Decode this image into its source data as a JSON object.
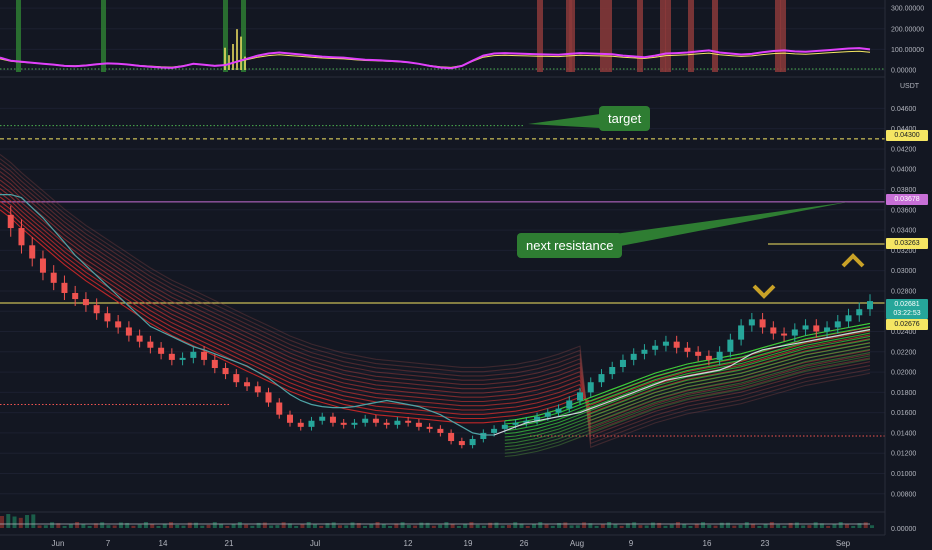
{
  "chart_data": {
    "type": "line",
    "currency": "USDT",
    "price_axis": {
      "ticks": [
        "0.04600",
        "0.04400",
        "0.04200",
        "0.04000",
        "0.03800",
        "0.03600",
        "0.03400",
        "0.03200",
        "0.03000",
        "0.02800",
        "0.02600",
        "0.02400",
        "0.02200",
        "0.02000",
        "0.01800",
        "0.01600",
        "0.01400",
        "0.01200",
        "0.01000",
        "0.00800"
      ],
      "range": [
        0.0064,
        0.0488
      ]
    },
    "oscillator_axis": {
      "ticks": [
        "300.00000",
        "200.00000",
        "100.00000",
        "0.00000"
      ],
      "range": [
        0,
        320
      ]
    },
    "volume_axis": {
      "ticks": [
        "0.00000"
      ]
    },
    "x_labels": [
      "Jun",
      "7",
      "14",
      "21",
      "Jul",
      "12",
      "19",
      "26",
      "Aug",
      "9",
      "16",
      "23",
      "Sep"
    ],
    "price_tags": [
      {
        "label": "0.04300",
        "value": 0.043,
        "color": "#f5e663",
        "text_color": "#131722"
      },
      {
        "label": "0.03678",
        "value": 0.03678,
        "color": "#c76fd6",
        "text_color": "#ffffff"
      },
      {
        "label": "0.03263",
        "value": 0.03263,
        "color": "#f5e663",
        "text_color": "#131722"
      },
      {
        "label": "0.02681",
        "value": 0.02681,
        "color": "#26a69a",
        "text_color": "#ffffff"
      },
      {
        "label": "03:22:53",
        "value": 0.02595,
        "color": "#26a69a",
        "text_color": "#ffffff"
      },
      {
        "label": "0.02676",
        "value": 0.025,
        "color": "#f5e663",
        "text_color": "#131722"
      }
    ],
    "levels": [
      {
        "name": "target",
        "value": 0.0443,
        "style": "dotted",
        "color": "#4caf50"
      },
      {
        "name": "0.04300",
        "value": 0.043,
        "style": "dashed",
        "color": "#f5e663"
      },
      {
        "name": "0.03678",
        "value": 0.03678,
        "style": "solid",
        "color": "#c76fd6"
      },
      {
        "name": "0.03263",
        "value": 0.03263,
        "style": "solid",
        "color": "#f5e663"
      },
      {
        "name": "0.02681",
        "value": 0.02681,
        "style": "solid",
        "color": "#f5e663"
      },
      {
        "name": "upper-red-support",
        "value": 0.0168,
        "style": "dotted",
        "color": "#ef5350"
      },
      {
        "name": "lower-red-support",
        "value": 0.0137,
        "style": "dotted",
        "color": "#ef5350"
      }
    ],
    "price_series": [
      0.0355,
      0.0342,
      0.0325,
      0.0312,
      0.0298,
      0.0288,
      0.0278,
      0.0272,
      0.0266,
      0.0258,
      0.025,
      0.0244,
      0.0236,
      0.023,
      0.0224,
      0.0218,
      0.0212,
      0.0214,
      0.022,
      0.0212,
      0.0204,
      0.0198,
      0.019,
      0.0186,
      0.018,
      0.017,
      0.0158,
      0.015,
      0.0146,
      0.0152,
      0.0156,
      0.015,
      0.0148,
      0.015,
      0.0154,
      0.015,
      0.0148,
      0.0152,
      0.015,
      0.0146,
      0.0144,
      0.014,
      0.0132,
      0.0128,
      0.0134,
      0.014,
      0.0144,
      0.0148,
      0.015,
      0.0152,
      0.0156,
      0.016,
      0.0164,
      0.0172,
      0.018,
      0.019,
      0.0198,
      0.0205,
      0.0212,
      0.0218,
      0.0222,
      0.0226,
      0.023,
      0.0224,
      0.022,
      0.0216,
      0.0212,
      0.022,
      0.0232,
      0.0246,
      0.0252,
      0.0244,
      0.0238,
      0.0236,
      0.0242,
      0.0246,
      0.024,
      0.0244,
      0.025,
      0.0256,
      0.0262,
      0.027
    ],
    "trail_series": [
      0.0375,
      0.0375,
      0.0372,
      0.0362,
      0.0352,
      0.034,
      0.0328,
      0.0315,
      0.0305,
      0.0295,
      0.0285,
      0.0275,
      0.0265,
      0.0255,
      0.0245,
      0.024,
      0.0235,
      0.023,
      0.0225,
      0.0222,
      0.0218,
      0.0214,
      0.021,
      0.0206,
      0.02,
      0.0194,
      0.0186,
      0.0178,
      0.0172,
      0.0168,
      0.0166,
      0.0165,
      0.0165,
      0.0166,
      0.0168,
      0.017,
      0.0172,
      0.017,
      0.0168,
      0.0166,
      0.0162,
      0.0158,
      0.0152,
      0.0146,
      0.014,
      0.0138,
      0.0138,
      0.0142,
      0.0146,
      0.015,
      0.0152,
      0.0154,
      0.0156,
      0.0158,
      0.016,
      0.0164,
      0.0168,
      0.0172,
      0.0176,
      0.018,
      0.0184,
      0.0188,
      0.0192,
      0.0194,
      0.0196,
      0.0198,
      0.02,
      0.0202,
      0.0206,
      0.0212,
      0.0218,
      0.0222,
      0.0224,
      0.0226,
      0.0228,
      0.023,
      0.0232,
      0.0234,
      0.0236,
      0.0238,
      0.024,
      0.0242
    ],
    "ribbon_series": [
      0.036,
      0.0352,
      0.0342,
      0.0333,
      0.0324,
      0.0315,
      0.0306,
      0.0298,
      0.029,
      0.0283,
      0.0276,
      0.0269,
      0.0262,
      0.0255,
      0.0248,
      0.0242,
      0.0236,
      0.0231,
      0.0226,
      0.0221,
      0.0216,
      0.0211,
      0.0206,
      0.0201,
      0.0196,
      0.0191,
      0.0186,
      0.0181,
      0.0177,
      0.0173,
      0.017,
      0.0167,
      0.0164,
      0.0162,
      0.016,
      0.0158,
      0.0157,
      0.0156,
      0.0155,
      0.0154,
      0.0153,
      0.0152,
      0.0151,
      0.015,
      0.015,
      0.015,
      0.0151,
      0.0152,
      0.0153,
      0.0155,
      0.0157,
      0.016,
      0.0163,
      0.0167,
      0.0171,
      0.0175,
      0.0179,
      0.0183,
      0.0187,
      0.0191,
      0.0195,
      0.0199,
      0.0202,
      0.0205,
      0.0208,
      0.021,
      0.0212,
      0.0214,
      0.0216,
      0.0218,
      0.0221,
      0.0224,
      0.0227,
      0.023,
      0.0233,
      0.0236,
      0.0238,
      0.024,
      0.0242,
      0.0244,
      0.0246,
      0.0248
    ],
    "oscillator_series": [
      {
        "name": "fast",
        "color": "#e040fb",
        "values": [
          60,
          45,
          40,
          35,
          30,
          26,
          20,
          18,
          22,
          28,
          32,
          30,
          26,
          20,
          16,
          12,
          10,
          18,
          30,
          25,
          20,
          24,
          40,
          55,
          70,
          80,
          85,
          80,
          75,
          70,
          65,
          62,
          60,
          55,
          50,
          48,
          45,
          42,
          38,
          30,
          20,
          12,
          8,
          20,
          45,
          70,
          80,
          82,
          80,
          78,
          76,
          75,
          74,
          78,
          82,
          80,
          78,
          76,
          70,
          66,
          62,
          70,
          80,
          82,
          85,
          90,
          95,
          85,
          80,
          75,
          78,
          86,
          92,
          95,
          90,
          88,
          92,
          96,
          100,
          104,
          106,
          100
        ]
      }
    ]
  },
  "annotations": {
    "target_label": "target",
    "resistance_label": "next resistance"
  }
}
